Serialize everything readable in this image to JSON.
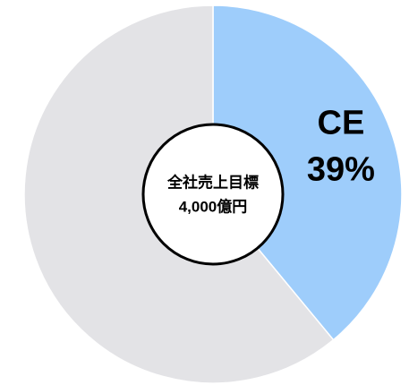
{
  "chart_data": {
    "type": "pie",
    "categories": [
      "CE",
      null
    ],
    "values": [
      39,
      61
    ],
    "value_labels": [
      "39%",
      null
    ],
    "colors": [
      "#9ecdfb",
      "#e3e3e6"
    ],
    "start_angle": 0,
    "direction": "clockwise",
    "center_text": [
      "全社売上目標",
      "4,000億円"
    ]
  }
}
